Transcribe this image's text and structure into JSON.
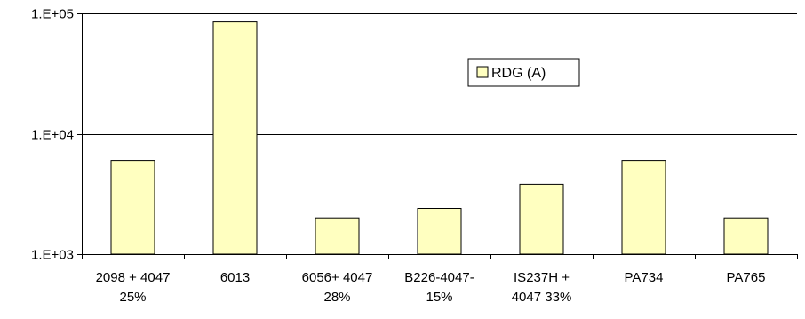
{
  "chart_data": {
    "type": "bar",
    "title": "",
    "xlabel": "",
    "ylabel": "",
    "yscale": "log",
    "ylim": [
      1000,
      100000
    ],
    "grid": "horizontal major lines",
    "legend": {
      "placement": "top-right",
      "entries": [
        "RDG (A)"
      ]
    },
    "y_tick_values": [
      1000,
      10000,
      100000
    ],
    "y_tick_labels": [
      "1.E+03",
      "1.E+04",
      "1.E+05"
    ],
    "categories": [
      [
        "2098 + 4047",
        "25%"
      ],
      [
        "6013"
      ],
      [
        "6056+ 4047",
        "28%"
      ],
      [
        "B226-4047-",
        "15%"
      ],
      [
        "IS237H +",
        "4047 33%"
      ],
      [
        "PA734"
      ],
      [
        "PA765"
      ]
    ],
    "series": [
      {
        "name": "RDG (A)",
        "values": [
          6000,
          85000,
          2000,
          2400,
          3800,
          6000,
          2000
        ]
      }
    ],
    "colors": {
      "bar_fill": "#ffffc0",
      "bar_stroke": "#000000",
      "axis": "#000000",
      "grid": "#000000",
      "text": "#000000",
      "background": "#ffffff"
    }
  }
}
